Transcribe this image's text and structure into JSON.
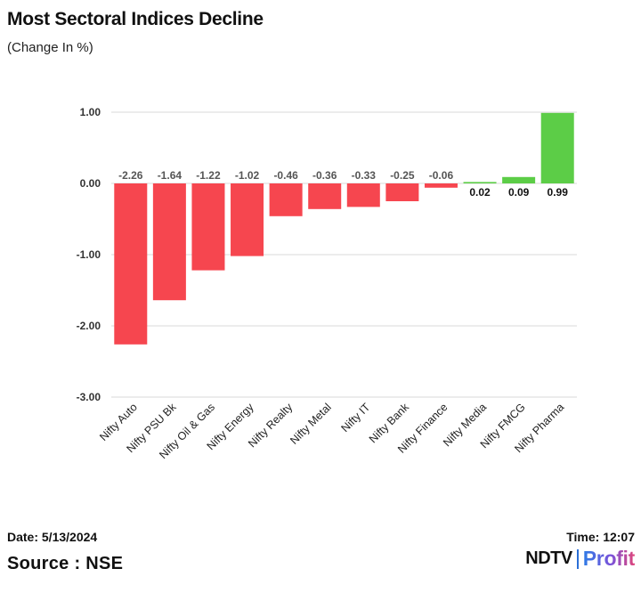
{
  "header": {
    "title": "Most Sectoral Indices Decline",
    "subtitle": "(Change In %)"
  },
  "footer": {
    "date": "Date: 5/13/2024",
    "source": "Source : NSE",
    "time": "Time: 12:07",
    "logo_left": "NDTV",
    "logo_right": "Profit"
  },
  "colors": {
    "negative": "#f6464f",
    "positive": "#5ccd47",
    "grid": "#d9d9d9"
  },
  "chart_data": {
    "type": "bar",
    "title": "Most Sectoral Indices Decline",
    "subtitle": "(Change In %)",
    "xlabel": "",
    "ylabel": "",
    "ylim": [
      -3,
      1
    ],
    "yticks": [
      1,
      0,
      -1,
      -2,
      -3
    ],
    "ytick_labels": [
      "1.00",
      "0.00",
      "-1.00",
      "-2.00",
      "-3.00"
    ],
    "grid": true,
    "categories": [
      "Nifty Auto",
      "Nifty PSU Bk",
      "Nifty Oil & Gas",
      "Nifty Energy",
      "Nifty Realty",
      "Nifty Metal",
      "Nifty IT",
      "Nifty Bank",
      "Nifty Finance",
      "Nifty Media",
      "Nifty FMCG",
      "Nifty Pharma"
    ],
    "values": [
      -2.26,
      -1.64,
      -1.22,
      -1.02,
      -0.46,
      -0.36,
      -0.33,
      -0.25,
      -0.06,
      0.02,
      0.09,
      0.99
    ],
    "value_labels": [
      "-2.26",
      "-1.64",
      "-1.22",
      "-1.02",
      "-0.46",
      "-0.36",
      "-0.33",
      "-0.25",
      "-0.06",
      "0.02",
      "0.09",
      "0.99"
    ]
  }
}
